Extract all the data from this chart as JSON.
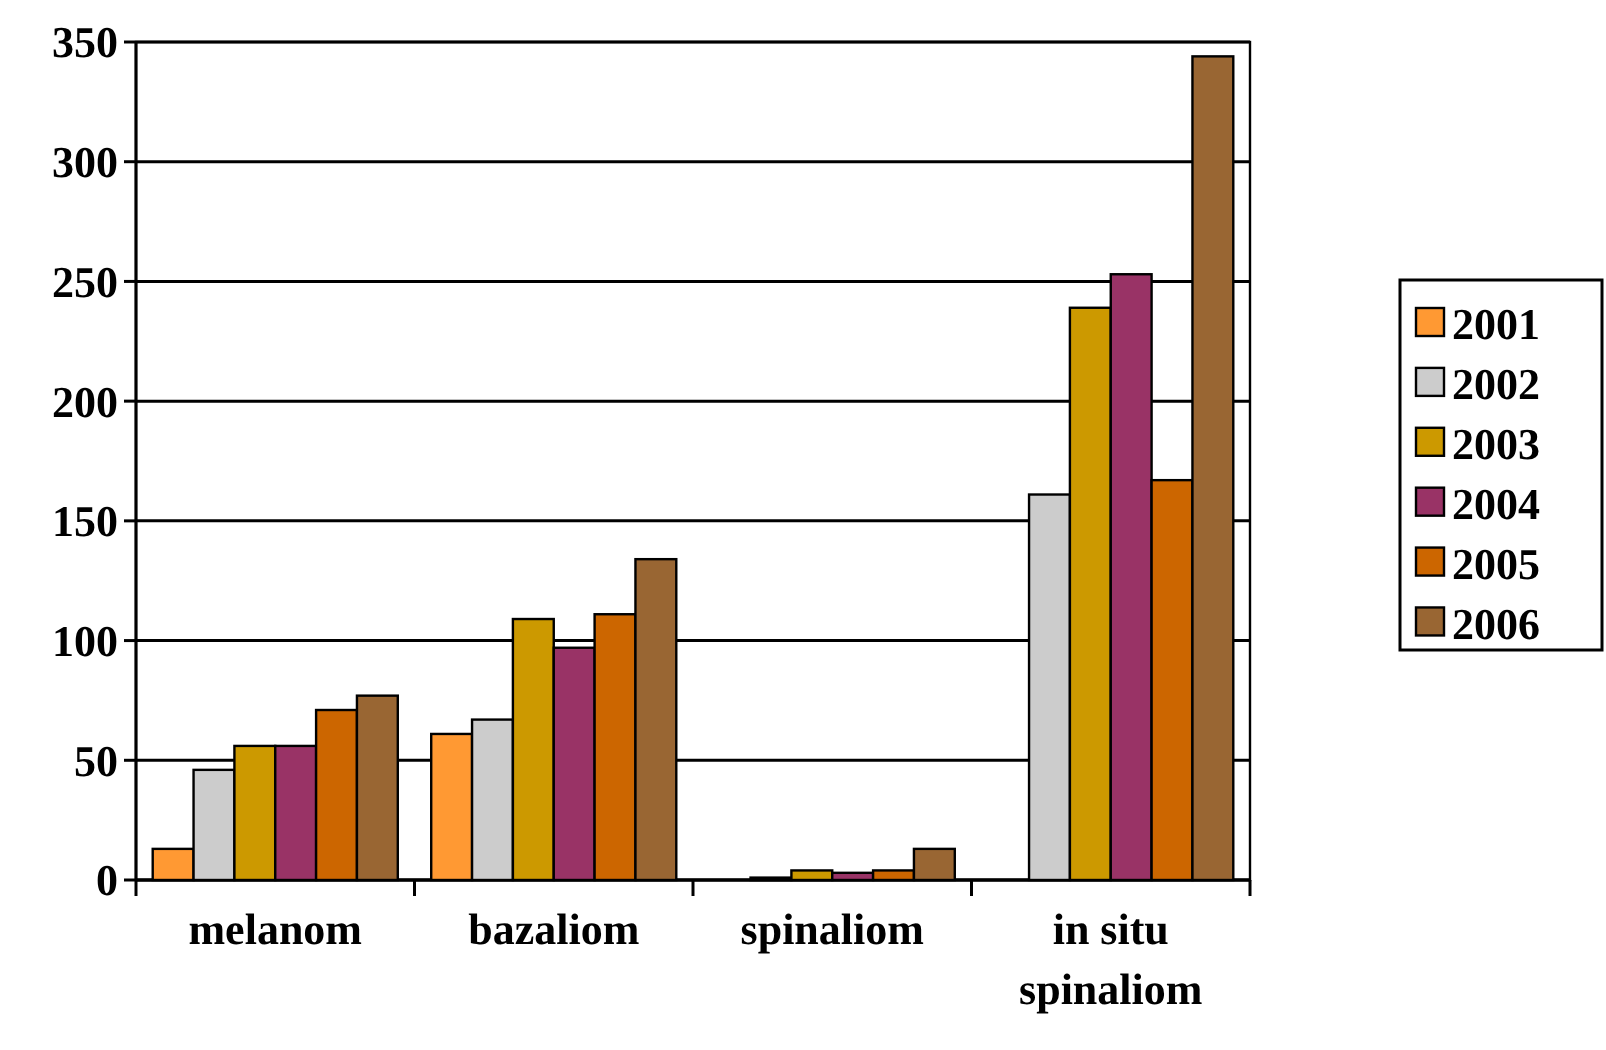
{
  "chart_data": {
    "type": "bar",
    "categories": [
      "melanom",
      "bazaliom",
      "spinaliom",
      "in situ spinaliom"
    ],
    "series": [
      {
        "name": "2001",
        "color": "#ff9933",
        "values": [
          13,
          61,
          0,
          0
        ]
      },
      {
        "name": "2002",
        "color": "#cccccc",
        "values": [
          46,
          67,
          1,
          161
        ]
      },
      {
        "name": "2003",
        "color": "#cc9900",
        "values": [
          56,
          109,
          4,
          239
        ]
      },
      {
        "name": "2004",
        "color": "#993366",
        "values": [
          56,
          97,
          3,
          253
        ]
      },
      {
        "name": "2005",
        "color": "#cc6600",
        "values": [
          71,
          111,
          4,
          167
        ]
      },
      {
        "name": "2006",
        "color": "#996633",
        "values": [
          77,
          134,
          13,
          344
        ]
      }
    ],
    "ylim": [
      0,
      350
    ],
    "yticks": [
      0,
      50,
      100,
      150,
      200,
      250,
      300,
      350
    ],
    "grid": "y",
    "legend": "right"
  }
}
